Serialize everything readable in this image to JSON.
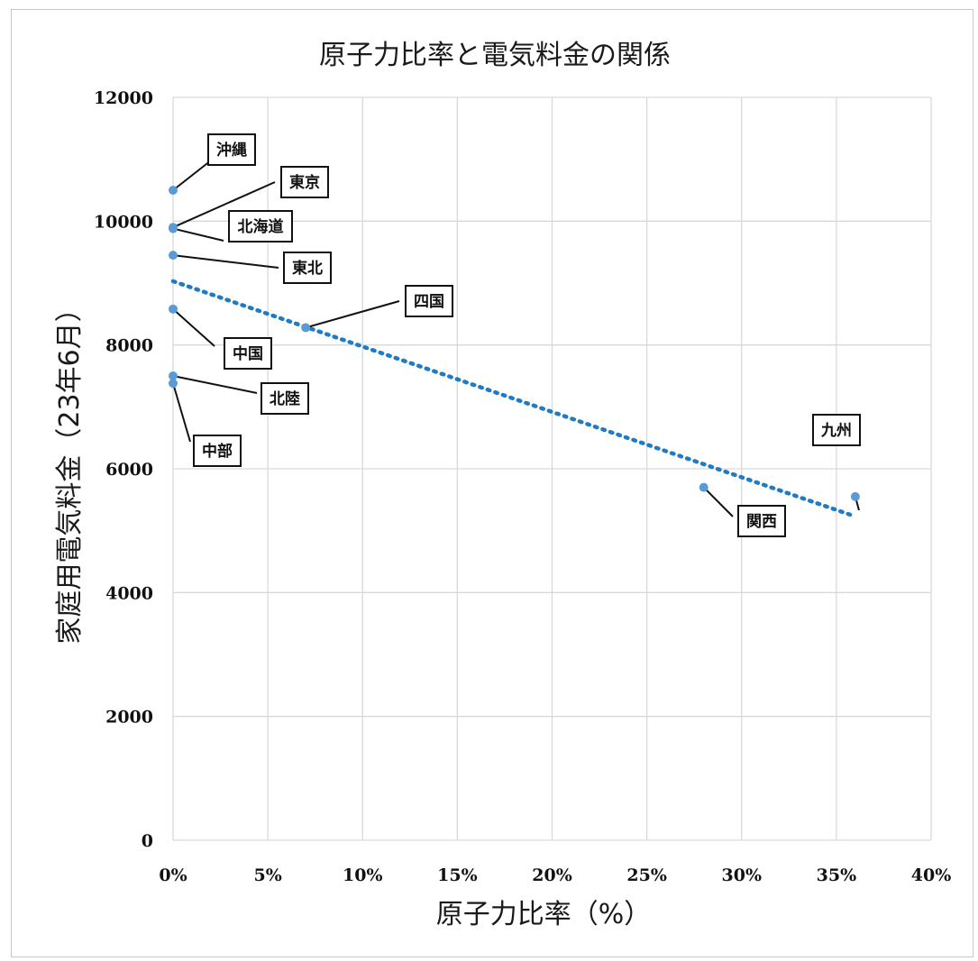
{
  "chart_data": {
    "type": "scatter",
    "title": "原子力比率と電気料金の関係",
    "xlabel": "原子力比率（%）",
    "ylabel": "家庭用電気料金（23年6月）",
    "xlim": [
      0,
      40
    ],
    "ylim": [
      0,
      12000
    ],
    "x_ticks": [
      0,
      5,
      10,
      15,
      20,
      25,
      30,
      35,
      40
    ],
    "x_tick_labels": [
      "0%",
      "5%",
      "10%",
      "15%",
      "20%",
      "25%",
      "30%",
      "35%",
      "40%"
    ],
    "y_ticks": [
      0,
      2000,
      4000,
      6000,
      8000,
      10000,
      12000
    ],
    "y_tick_labels": [
      "0",
      "2000",
      "4000",
      "6000",
      "8000",
      "10000",
      "12000"
    ],
    "grid": true,
    "points": [
      {
        "label": "沖縄",
        "x": 0,
        "y": 10500
      },
      {
        "label": "東京",
        "x": 0,
        "y": 9900
      },
      {
        "label": "北海道",
        "x": 0,
        "y": 9880
      },
      {
        "label": "東北",
        "x": 0,
        "y": 9450
      },
      {
        "label": "中国",
        "x": 0,
        "y": 8580
      },
      {
        "label": "北陸",
        "x": 0,
        "y": 7500
      },
      {
        "label": "中部",
        "x": 0,
        "y": 7380
      },
      {
        "label": "四国",
        "x": 7,
        "y": 8280
      },
      {
        "label": "関西",
        "x": 28,
        "y": 5700
      },
      {
        "label": "九州",
        "x": 36,
        "y": 5550
      }
    ],
    "trendline": {
      "style": "dotted",
      "color": "#1f7bc4",
      "from": [
        0,
        9030
      ],
      "to": [
        36,
        5230
      ]
    },
    "point_color": "#5b9bd5"
  }
}
